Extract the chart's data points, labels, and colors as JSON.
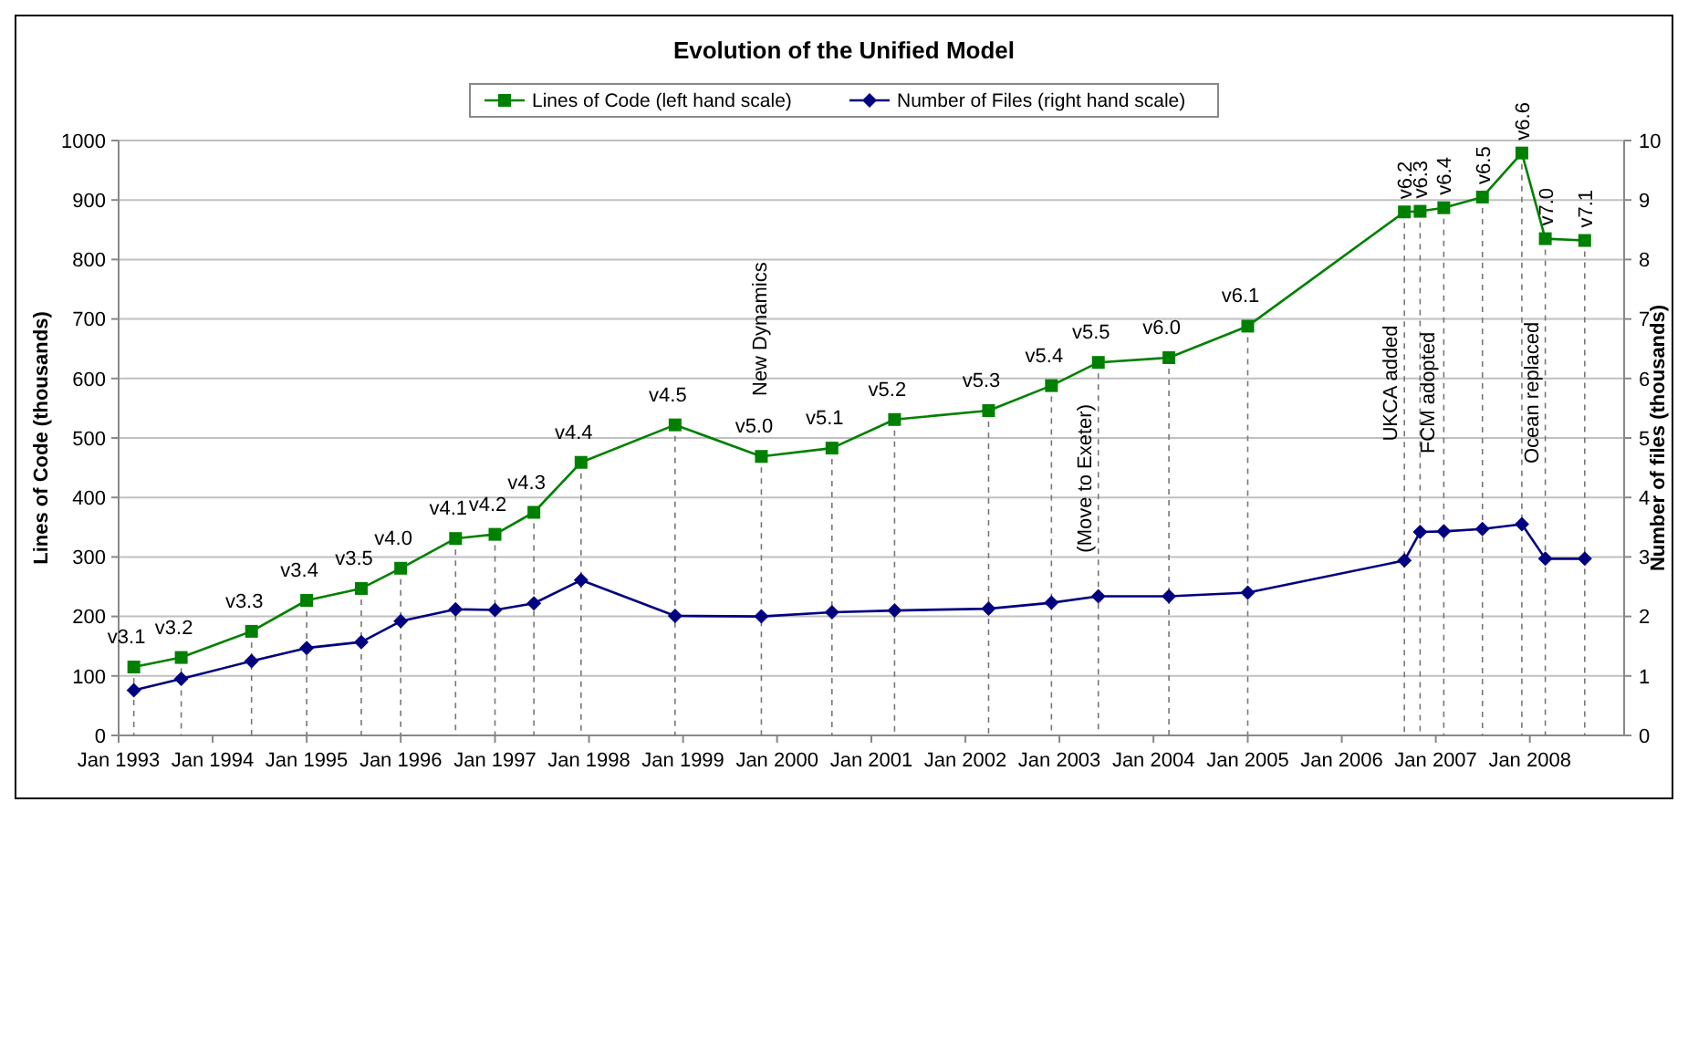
{
  "chart_data": {
    "type": "line",
    "title": "Evolution of the Unified Model",
    "ylabel": "Lines of Code (thousands)",
    "y2label": "Number of files (thousands)",
    "x": [
      "1993-03",
      "1993-09",
      "1994-06",
      "1995-01",
      "1995-08",
      "1996-01",
      "1996-08",
      "1997-01",
      "1997-06",
      "1997-12",
      "1998-12",
      "1999-11",
      "2000-08",
      "2001-04",
      "2002-04",
      "2002-12",
      "2003-06",
      "2004-03",
      "2005-01",
      "2006-09",
      "2006-11",
      "2007-02",
      "2007-07",
      "2007-12",
      "2008-03",
      "2008-08"
    ],
    "series": [
      {
        "name": "Lines of Code (left hand scale)",
        "color": "#008000",
        "marker": "square",
        "values": [
          115,
          131,
          175,
          227,
          247,
          281,
          331,
          338,
          375,
          459,
          522,
          469,
          483,
          531,
          546,
          588,
          627,
          635,
          688,
          880,
          881,
          887,
          905,
          979,
          835,
          832
        ]
      },
      {
        "name": "Number of Files (right hand scale)",
        "color": "#000080",
        "marker": "diamond",
        "axis": "y2",
        "values": [
          0.76,
          0.95,
          1.25,
          1.47,
          1.57,
          1.92,
          2.12,
          2.11,
          2.22,
          2.61,
          2.01,
          2.0,
          2.07,
          2.1,
          2.13,
          2.23,
          2.34,
          2.34,
          2.4,
          2.94,
          3.42,
          3.43,
          3.47,
          3.55,
          2.97,
          2.97
        ]
      }
    ],
    "xlim": [
      "1993-01",
      "2009-01"
    ],
    "xticks": [
      {
        "value": "1993-01",
        "label": "Jan 1993"
      },
      {
        "value": "1994-01",
        "label": "Jan 1994"
      },
      {
        "value": "1995-01",
        "label": "Jan 1995"
      },
      {
        "value": "1996-01",
        "label": "Jan 1996"
      },
      {
        "value": "1997-01",
        "label": "Jan 1997"
      },
      {
        "value": "1998-01",
        "label": "Jan 1998"
      },
      {
        "value": "1999-01",
        "label": "Jan 1999"
      },
      {
        "value": "2000-01",
        "label": "Jan 2000"
      },
      {
        "value": "2001-01",
        "label": "Jan 2001"
      },
      {
        "value": "2002-01",
        "label": "Jan 2002"
      },
      {
        "value": "2003-01",
        "label": "Jan 2003"
      },
      {
        "value": "2004-01",
        "label": "Jan 2004"
      },
      {
        "value": "2005-01",
        "label": "Jan 2005"
      },
      {
        "value": "2006-01",
        "label": "Jan 2006"
      },
      {
        "value": "2007-01",
        "label": "Jan 2007"
      },
      {
        "value": "2008-01",
        "label": "Jan 2008"
      }
    ],
    "ylim": [
      0,
      1000
    ],
    "yticks": [
      0,
      100,
      200,
      300,
      400,
      500,
      600,
      700,
      800,
      900,
      1000
    ],
    "y2lim": [
      0,
      10
    ],
    "y2ticks": [
      0,
      1,
      2,
      3,
      4,
      5,
      6,
      7,
      8,
      9,
      10
    ],
    "ref_lines": [
      {
        "axis": "x",
        "value": "1993-03",
        "label": "v3.1",
        "line_style": "dashed"
      },
      {
        "axis": "x",
        "value": "1993-09",
        "label": "v3.2",
        "line_style": "dashed"
      },
      {
        "axis": "x",
        "value": "1994-06",
        "label": "v3.3",
        "line_style": "dashed"
      },
      {
        "axis": "x",
        "value": "1995-01",
        "label": "v3.4",
        "line_style": "dashed"
      },
      {
        "axis": "x",
        "value": "1995-08",
        "label": "v3.5",
        "line_style": "dashed"
      },
      {
        "axis": "x",
        "value": "1996-01",
        "label": "v4.0",
        "line_style": "dashed"
      },
      {
        "axis": "x",
        "value": "1996-08",
        "label": "v4.1",
        "line_style": "dashed"
      },
      {
        "axis": "x",
        "value": "1997-01",
        "label": "v4.2",
        "line_style": "dashed"
      },
      {
        "axis": "x",
        "value": "1997-06",
        "label": "v4.3",
        "line_style": "dashed"
      },
      {
        "axis": "x",
        "value": "1997-12",
        "label": "v4.4",
        "line_style": "dashed"
      },
      {
        "axis": "x",
        "value": "1998-12",
        "label": "v4.5",
        "line_style": "dashed"
      },
      {
        "axis": "x",
        "value": "1999-11",
        "label": "v5.0",
        "line_style": "dashed"
      },
      {
        "axis": "x",
        "value": "2000-08",
        "label": "v5.1",
        "line_style": "dashed"
      },
      {
        "axis": "x",
        "value": "2001-04",
        "label": "v5.2",
        "line_style": "dashed"
      },
      {
        "axis": "x",
        "value": "2002-04",
        "label": "v5.3",
        "line_style": "dashed"
      },
      {
        "axis": "x",
        "value": "2002-12",
        "label": "v5.4",
        "line_style": "dashed"
      },
      {
        "axis": "x",
        "value": "2003-06",
        "label": "v5.5",
        "line_style": "dashed"
      },
      {
        "axis": "x",
        "value": "2004-03",
        "label": "v6.0",
        "line_style": "dashed"
      },
      {
        "axis": "x",
        "value": "2005-01",
        "label": "v6.1",
        "line_style": "dashed"
      },
      {
        "axis": "x",
        "value": "2006-09",
        "label": "v6.2",
        "line_style": "dashed"
      },
      {
        "axis": "x",
        "value": "2006-11",
        "label": "v6.3",
        "line_style": "dashed"
      },
      {
        "axis": "x",
        "value": "2007-02",
        "label": "v6.4",
        "line_style": "dashed"
      },
      {
        "axis": "x",
        "value": "2007-07",
        "label": "v6.5",
        "line_style": "dashed"
      },
      {
        "axis": "x",
        "value": "2007-12",
        "label": "v6.6",
        "line_style": "dashed"
      },
      {
        "axis": "x",
        "value": "2008-03",
        "label": "v7.0",
        "line_style": "dashed"
      },
      {
        "axis": "x",
        "value": "2008-08",
        "label": "v7.1",
        "line_style": "dashed"
      }
    ],
    "annotations": [
      "New Dynamics",
      {
        "text": "(Move to Exeter)",
        "x": "2003-06",
        "y": 432
      },
      {
        "text": "UKCA added",
        "x": "2006-09",
        "y": 592
      },
      {
        "text": "FCM adopted",
        "x": "2006-11",
        "y": 576
      },
      {
        "text": "Ocean replaced",
        "x": "2008-03",
        "y": 576
      }
    ],
    "grid": "y",
    "legend": "top"
  }
}
